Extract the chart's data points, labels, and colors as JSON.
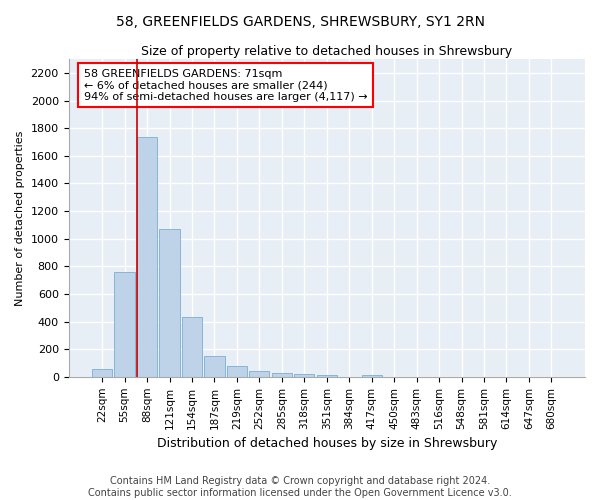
{
  "title": "58, GREENFIELDS GARDENS, SHREWSBURY, SY1 2RN",
  "subtitle": "Size of property relative to detached houses in Shrewsbury",
  "xlabel": "Distribution of detached houses by size in Shrewsbury",
  "ylabel": "Number of detached properties",
  "annotation_line1": "58 GREENFIELDS GARDENS: 71sqm",
  "annotation_line2": "← 6% of detached houses are smaller (244)",
  "annotation_line3": "94% of semi-detached houses are larger (4,117) →",
  "footer_line1": "Contains HM Land Registry data © Crown copyright and database right 2024.",
  "footer_line2": "Contains public sector information licensed under the Open Government Licence v3.0.",
  "bar_color": "#bed3e8",
  "bar_edge_color": "#7aaed4",
  "background_color": "#e8eef6",
  "grid_color": "#ffffff",
  "categories": [
    "22sqm",
    "55sqm",
    "88sqm",
    "121sqm",
    "154sqm",
    "187sqm",
    "219sqm",
    "252sqm",
    "285sqm",
    "318sqm",
    "351sqm",
    "384sqm",
    "417sqm",
    "450sqm",
    "483sqm",
    "516sqm",
    "548sqm",
    "581sqm",
    "614sqm",
    "647sqm",
    "680sqm"
  ],
  "values": [
    60,
    760,
    1740,
    1070,
    430,
    150,
    80,
    40,
    30,
    20,
    15,
    0,
    15,
    0,
    0,
    0,
    0,
    0,
    0,
    0,
    0
  ],
  "ylim": [
    0,
    2300
  ],
  "yticks": [
    0,
    200,
    400,
    600,
    800,
    1000,
    1200,
    1400,
    1600,
    1800,
    2000,
    2200
  ],
  "vline_x": 1.55,
  "red_line_color": "#cc0000",
  "title_fontsize": 10,
  "subtitle_fontsize": 9,
  "xlabel_fontsize": 9,
  "ylabel_fontsize": 8,
  "annotation_fontsize": 8,
  "footer_fontsize": 7
}
